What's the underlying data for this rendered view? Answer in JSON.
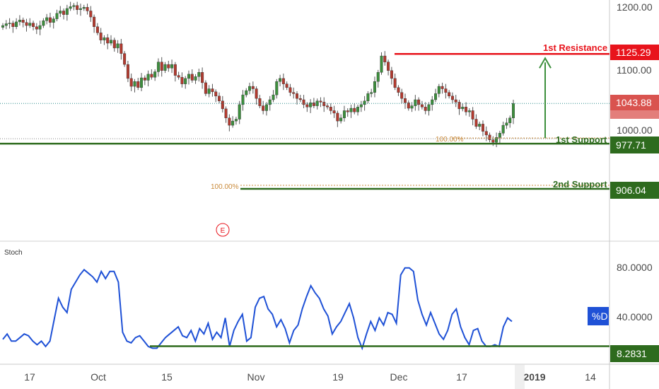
{
  "chart_data": [
    {
      "type": "candlestick",
      "ylim": [
        900,
        1215
      ],
      "price_ticks": [
        "1200.00",
        "1100.00",
        "1000.00"
      ],
      "x_ticks": [
        "17",
        "Oct",
        "15",
        "Nov",
        "19",
        "Dec",
        "17",
        "2019",
        "14"
      ],
      "last_price": "1043.88",
      "levels": [
        {
          "name": "1st Resistance",
          "value": "1125.29",
          "color": "#e8141c"
        },
        {
          "name": "1st Support",
          "value": "977.71",
          "color": "#2e6b1e"
        },
        {
          "name": "2nd Support",
          "value": "906.04",
          "color": "#2e6b1e"
        }
      ],
      "fib_labels": [
        "100.00%",
        "100.00%"
      ],
      "event_marker": "E",
      "colors": {
        "up": "#3c8f3c",
        "down": "#b23a2f",
        "accent_red": "#e8141c",
        "accent_green": "#2e6b1e",
        "last_price_tag": "#d9534f"
      },
      "close": [
        1172,
        1175,
        1176,
        1170,
        1178,
        1181,
        1177,
        1172,
        1176,
        1170,
        1166,
        1172,
        1180,
        1185,
        1177,
        1183,
        1192,
        1196,
        1190,
        1200,
        1203,
        1205,
        1198,
        1200,
        1202,
        1196,
        1186,
        1170,
        1160,
        1148,
        1152,
        1143,
        1148,
        1135,
        1142,
        1126,
        1108,
        1085,
        1072,
        1080,
        1070,
        1086,
        1082,
        1092,
        1087,
        1096,
        1112,
        1098,
        1108,
        1102,
        1108,
        1090,
        1087,
        1076,
        1085,
        1092,
        1082,
        1088,
        1095,
        1078,
        1060,
        1068,
        1063,
        1056,
        1048,
        1035,
        1020,
        1008,
        1015,
        1018,
        1042,
        1058,
        1065,
        1072,
        1068,
        1052,
        1040,
        1032,
        1042,
        1050,
        1058,
        1080,
        1085,
        1076,
        1070,
        1062,
        1060,
        1052,
        1050,
        1042,
        1038,
        1045,
        1040,
        1048,
        1046,
        1040,
        1038,
        1032,
        1028,
        1015,
        1020,
        1032,
        1030,
        1036,
        1030,
        1038,
        1042,
        1048,
        1060,
        1062,
        1080,
        1095,
        1122,
        1112,
        1098,
        1085,
        1070,
        1062,
        1052,
        1045,
        1036,
        1040,
        1050,
        1042,
        1038,
        1032,
        1042,
        1050,
        1060,
        1072,
        1068,
        1062,
        1056,
        1050,
        1046,
        1035,
        1038,
        1030,
        1032,
        1018,
        1006,
        1010,
        998,
        992,
        984,
        980,
        988,
        995,
        1008,
        1012,
        1020,
        1044
      ],
      "stoch": {
        "name": "Stoch",
        "series_label": "%D",
        "ylim": [
          0,
          100
        ],
        "ticks": [
          "80.0000",
          "40.0000"
        ],
        "last_label": "8.2831",
        "support_value": 8.2831,
        "values": [
          16,
          22,
          14,
          14,
          18,
          22,
          20,
          14,
          10,
          14,
          8,
          14,
          38,
          62,
          52,
          46,
          72,
          80,
          88,
          94,
          90,
          86,
          80,
          92,
          84,
          92,
          92,
          80,
          24,
          14,
          12,
          18,
          20,
          14,
          8,
          6,
          6,
          12,
          18,
          22,
          26,
          30,
          20,
          18,
          26,
          14,
          28,
          22,
          34,
          16,
          24,
          18,
          40,
          8,
          26,
          36,
          44,
          14,
          18,
          52,
          62,
          64,
          50,
          44,
          30,
          38,
          28,
          12,
          26,
          32,
          50,
          64,
          76,
          68,
          62,
          50,
          42,
          22,
          30,
          36,
          46,
          56,
          40,
          18,
          6,
          22,
          36,
          26,
          40,
          32,
          46,
          44,
          34,
          88,
          96,
          96,
          92,
          60,
          44,
          32,
          46,
          34,
          22,
          16,
          26,
          44,
          50,
          30,
          18,
          10,
          26,
          28,
          14,
          8,
          8,
          10,
          8,
          30,
          40,
          36
        ]
      }
    }
  ]
}
